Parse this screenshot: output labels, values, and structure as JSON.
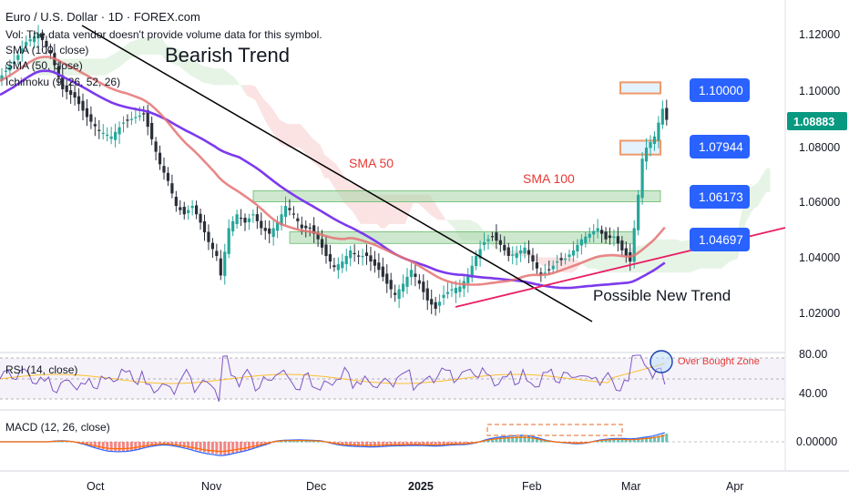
{
  "header": {
    "title": "Euro / U.S. Dollar · 1D · FOREX.com",
    "volume_note": "Vol: The data vendor doesn't provide volume data for this symbol.",
    "legend": [
      "SMA (100, close)",
      "SMA (50, close)",
      "Ichimoku (9, 26, 52, 26)"
    ]
  },
  "annotations": {
    "bearish": "Bearish Trend",
    "sma50": "SMA 50",
    "sma100": "SMA 100",
    "new_trend": "Possible New Trend",
    "overbought": "Over Bought Zone"
  },
  "price_labels": [
    "1.10000",
    "1.07944",
    "1.06173",
    "1.04697"
  ],
  "current_price": "1.08883",
  "colors": {
    "bull": "#26a69a",
    "bear": "#2a2e39",
    "sma100": "#7c3aed",
    "sma50": "#e57373",
    "label_blue": "#2962ff",
    "price_green": "#089981",
    "zone_green": "#a5d6a7",
    "zone_orange": "#ef9a6b",
    "trend_pink": "#e91e63"
  },
  "panes": {
    "rsi_label": "RSI (14, close)",
    "macd_label": "MACD (12, 26, close)"
  },
  "chart_data": {
    "type": "candlestick",
    "title": "Euro / U.S. Dollar · 1D · FOREX.com",
    "x_ticks": [
      "Oct",
      "Nov",
      "Dec",
      "2025",
      "Feb",
      "Mar",
      "Apr"
    ],
    "y_ticks": [
      "1.12000",
      "1.10000",
      "1.08000",
      "1.06000",
      "1.04000",
      "1.02000"
    ],
    "ylim": [
      1.0125,
      1.1265
    ],
    "rsi_ticks": [
      "80.00",
      "40.00"
    ],
    "macd_ticks": [
      "0.00000"
    ],
    "key_levels": [
      1.1,
      1.07944,
      1.06173,
      1.04697
    ],
    "current_price": 1.08883,
    "close_path": [
      [
        0,
        1.105
      ],
      [
        3,
        1.11
      ],
      [
        6,
        1.117
      ],
      [
        9,
        1.12
      ],
      [
        12,
        1.113
      ],
      [
        15,
        1.1
      ],
      [
        18,
        1.097
      ],
      [
        21,
        1.09
      ],
      [
        24,
        1.085
      ],
      [
        27,
        1.083
      ],
      [
        30,
        1.088
      ],
      [
        33,
        1.09
      ],
      [
        35,
        1.091
      ],
      [
        37,
        1.082
      ],
      [
        39,
        1.073
      ],
      [
        41,
        1.067
      ],
      [
        43,
        1.058
      ],
      [
        45,
        1.055
      ],
      [
        47,
        1.058
      ],
      [
        49,
        1.052
      ],
      [
        51,
        1.045
      ],
      [
        53,
        1.04
      ],
      [
        54,
        1.033
      ],
      [
        56,
        1.05
      ],
      [
        58,
        1.055
      ],
      [
        60,
        1.052
      ],
      [
        62,
        1.055
      ],
      [
        64,
        1.05
      ],
      [
        66,
        1.048
      ],
      [
        68,
        1.052
      ],
      [
        70,
        1.058
      ],
      [
        72,
        1.055
      ],
      [
        74,
        1.05
      ],
      [
        76,
        1.05
      ],
      [
        78,
        1.046
      ],
      [
        80,
        1.04
      ],
      [
        82,
        1.036
      ],
      [
        84,
        1.038
      ],
      [
        86,
        1.042
      ],
      [
        88,
        1.04
      ],
      [
        90,
        1.04
      ],
      [
        91,
        1.038
      ],
      [
        93,
        1.035
      ],
      [
        95,
        1.03
      ],
      [
        97,
        1.026
      ],
      [
        99,
        1.03
      ],
      [
        101,
        1.035
      ],
      [
        103,
        1.03
      ],
      [
        105,
        1.024
      ],
      [
        107,
        1.021
      ],
      [
        109,
        1.026
      ],
      [
        111,
        1.028
      ],
      [
        113,
        1.029
      ],
      [
        115,
        1.033
      ],
      [
        117,
        1.04
      ],
      [
        119,
        1.045
      ],
      [
        121,
        1.047
      ],
      [
        123,
        1.044
      ],
      [
        125,
        1.04
      ],
      [
        127,
        1.041
      ],
      [
        129,
        1.043
      ],
      [
        131,
        1.038
      ],
      [
        133,
        1.033
      ],
      [
        135,
        1.035
      ],
      [
        137,
        1.038
      ],
      [
        139,
        1.039
      ],
      [
        141,
        1.042
      ],
      [
        143,
        1.046
      ],
      [
        145,
        1.048
      ],
      [
        147,
        1.05
      ],
      [
        149,
        1.046
      ],
      [
        151,
        1.047
      ],
      [
        153,
        1.042
      ],
      [
        155,
        1.038
      ],
      [
        156,
        1.05
      ],
      [
        157,
        1.062
      ],
      [
        158,
        1.075
      ],
      [
        159,
        1.079
      ],
      [
        160,
        1.081
      ],
      [
        161,
        1.083
      ],
      [
        162,
        1.088
      ],
      [
        163,
        1.093
      ],
      [
        164,
        1.089
      ]
    ]
  }
}
